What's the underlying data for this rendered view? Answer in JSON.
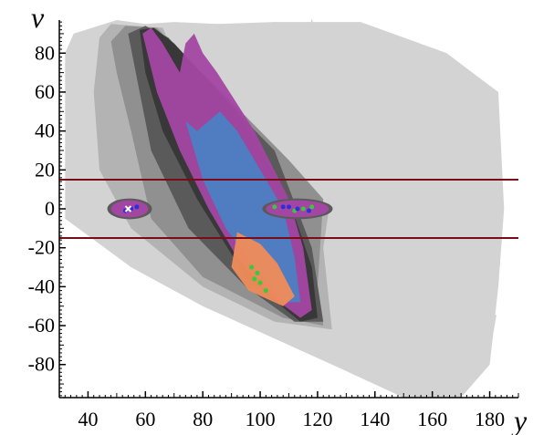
{
  "chart_data": {
    "type": "scatter",
    "title": "",
    "xlabel": "y",
    "ylabel": "v",
    "xlim": [
      30,
      190
    ],
    "ylim": [
      -97,
      97
    ],
    "xticks": [
      40,
      60,
      80,
      100,
      120,
      140,
      160,
      180
    ],
    "xtick_labels": [
      "40",
      "60",
      "80",
      "100",
      "120",
      "140",
      "160",
      "180"
    ],
    "yticks": [
      80,
      60,
      40,
      20,
      0,
      -20,
      -40,
      -60,
      -80
    ],
    "ytick_labels": [
      "80",
      "60",
      "40",
      "20",
      "0",
      "-20",
      "-40",
      "-60",
      "-80"
    ],
    "grid": false,
    "legend": "none",
    "reference_lines": [
      {
        "orientation": "horizontal",
        "y": 15,
        "color": "#7b0b17"
      },
      {
        "orientation": "horizontal",
        "y": -15,
        "color": "#7b0b17"
      }
    ],
    "density_regions": [
      {
        "name": "lightest-gray",
        "color": "#d3d3d3",
        "outline": [
          [
            32,
            80
          ],
          [
            35,
            90
          ],
          [
            50,
            97
          ],
          [
            60,
            95
          ],
          [
            70,
            96
          ],
          [
            85,
            95
          ],
          [
            105,
            96
          ],
          [
            135,
            96
          ],
          [
            165,
            80
          ],
          [
            183,
            60
          ],
          [
            185,
            0
          ],
          [
            183,
            -40
          ],
          [
            180,
            -80
          ],
          [
            170,
            -97
          ],
          [
            150,
            -97
          ],
          [
            125,
            -80
          ],
          [
            110,
            -70
          ],
          [
            80,
            -50
          ],
          [
            55,
            -30
          ],
          [
            32,
            -5
          ],
          [
            32,
            40
          ]
        ]
      },
      {
        "name": "light-gray",
        "color": "#b3b3b3",
        "outline": [
          [
            44,
            88
          ],
          [
            48,
            95
          ],
          [
            66,
            93
          ],
          [
            70,
            80
          ],
          [
            90,
            50
          ],
          [
            112,
            20
          ],
          [
            124,
            0
          ],
          [
            122,
            -20
          ],
          [
            125,
            -62
          ],
          [
            105,
            -58
          ],
          [
            80,
            -40
          ],
          [
            55,
            -10
          ],
          [
            44,
            20
          ],
          [
            42,
            60
          ]
        ]
      },
      {
        "name": "mid-gray",
        "color": "#909090",
        "outline": [
          [
            48,
            86
          ],
          [
            53,
            94
          ],
          [
            64,
            93
          ],
          [
            70,
            84
          ],
          [
            90,
            55
          ],
          [
            110,
            25
          ],
          [
            122,
            5
          ],
          [
            120,
            -40
          ],
          [
            122,
            -60
          ],
          [
            108,
            -56
          ],
          [
            80,
            -35
          ],
          [
            62,
            -5
          ],
          [
            55,
            40
          ],
          [
            50,
            70
          ]
        ]
      },
      {
        "name": "dark-gray",
        "color": "#5a5a5a",
        "outline": [
          [
            54,
            90
          ],
          [
            60,
            94
          ],
          [
            68,
            88
          ],
          [
            85,
            60
          ],
          [
            105,
            30
          ],
          [
            118,
            -20
          ],
          [
            122,
            -58
          ],
          [
            112,
            -58
          ],
          [
            95,
            -40
          ],
          [
            75,
            -10
          ],
          [
            62,
            30
          ],
          [
            58,
            60
          ]
        ]
      },
      {
        "name": "darkest-gray",
        "color": "#383838",
        "outline": [
          [
            58,
            92
          ],
          [
            63,
            93
          ],
          [
            70,
            85
          ],
          [
            92,
            50
          ],
          [
            110,
            5
          ],
          [
            118,
            -30
          ],
          [
            120,
            -56
          ],
          [
            114,
            -58
          ],
          [
            95,
            -35
          ],
          [
            78,
            5
          ],
          [
            66,
            40
          ],
          [
            60,
            70
          ]
        ]
      }
    ],
    "series": [
      {
        "name": "",
        "color": "#a346a3",
        "outline": [
          [
            59,
            90
          ],
          [
            62,
            93
          ],
          [
            66,
            85
          ],
          [
            72,
            70
          ],
          [
            74,
            85
          ],
          [
            77,
            90
          ],
          [
            80,
            80
          ],
          [
            85,
            70
          ],
          [
            98,
            40
          ],
          [
            110,
            5
          ],
          [
            115,
            -20
          ],
          [
            118,
            -52
          ],
          [
            114,
            -56
          ],
          [
            104,
            -45
          ],
          [
            92,
            -25
          ],
          [
            82,
            0
          ],
          [
            72,
            30
          ],
          [
            64,
            60
          ]
        ]
      },
      {
        "name": "",
        "color": "#4c7fc3",
        "outline": [
          [
            74,
            45
          ],
          [
            78,
            40
          ],
          [
            86,
            50
          ],
          [
            92,
            40
          ],
          [
            100,
            20
          ],
          [
            108,
            0
          ],
          [
            112,
            -25
          ],
          [
            114,
            -48
          ],
          [
            108,
            -48
          ],
          [
            98,
            -30
          ],
          [
            88,
            -10
          ],
          [
            80,
            15
          ]
        ]
      },
      {
        "name": "",
        "color": "#f08c5a",
        "outline": [
          [
            92,
            -12
          ],
          [
            100,
            -18
          ],
          [
            106,
            -28
          ],
          [
            112,
            -45
          ],
          [
            108,
            -50
          ],
          [
            96,
            -42
          ],
          [
            90,
            -30
          ]
        ]
      },
      {
        "name": "",
        "color": "#3bc93b",
        "points": [
          [
            97,
            -30
          ],
          [
            99,
            -33
          ],
          [
            100,
            -38
          ],
          [
            102,
            -42
          ],
          [
            98,
            -36
          ],
          [
            115,
            0
          ],
          [
            118,
            1
          ],
          [
            112,
            -1
          ],
          [
            105,
            1
          ]
        ]
      },
      {
        "name": "",
        "color": "#2e2eda",
        "points": [
          [
            55,
            0
          ],
          [
            57,
            1
          ],
          [
            53,
            -1
          ],
          [
            108,
            1
          ],
          [
            113,
            0
          ],
          [
            117,
            -1
          ],
          [
            110,
            1
          ]
        ]
      },
      {
        "name": "",
        "color": "#ffffff",
        "marker": "x",
        "points": [
          [
            54,
            0
          ]
        ]
      }
    ],
    "clusters": [
      {
        "name": "left-cluster",
        "x": [
          48,
          61
        ],
        "y": [
          -3,
          3
        ]
      },
      {
        "name": "right-cluster",
        "x": [
          102,
          124
        ],
        "y": [
          -3,
          3
        ]
      }
    ],
    "trajectories_color": "#d3d3d3",
    "trajectories": [
      [
        [
          118,
          95
        ],
        [
          122,
          60
        ],
        [
          128,
          80
        ],
        [
          133,
          40
        ],
        [
          138,
          70
        ],
        [
          143,
          20
        ],
        [
          150,
          50
        ],
        [
          155,
          0
        ],
        [
          160,
          -40
        ],
        [
          166,
          -60
        ],
        [
          182,
          -55
        ],
        [
          179,
          -80
        ],
        [
          171,
          -93
        ]
      ],
      [
        [
          105,
          96
        ],
        [
          112,
          70
        ],
        [
          118,
          96
        ],
        [
          124,
          60
        ],
        [
          130,
          90
        ],
        [
          138,
          40
        ],
        [
          146,
          -10
        ],
        [
          152,
          -50
        ],
        [
          160,
          -70
        ],
        [
          165,
          -85
        ]
      ],
      [
        [
          100,
          93
        ],
        [
          110,
          60
        ],
        [
          115,
          80
        ],
        [
          126,
          30
        ],
        [
          140,
          0
        ],
        [
          150,
          -30
        ],
        [
          158,
          -60
        ],
        [
          170,
          -88
        ]
      ],
      [
        [
          88,
          95
        ],
        [
          98,
          75
        ],
        [
          108,
          92
        ],
        [
          118,
          50
        ],
        [
          128,
          10
        ],
        [
          140,
          -40
        ],
        [
          150,
          -70
        ]
      ]
    ]
  }
}
